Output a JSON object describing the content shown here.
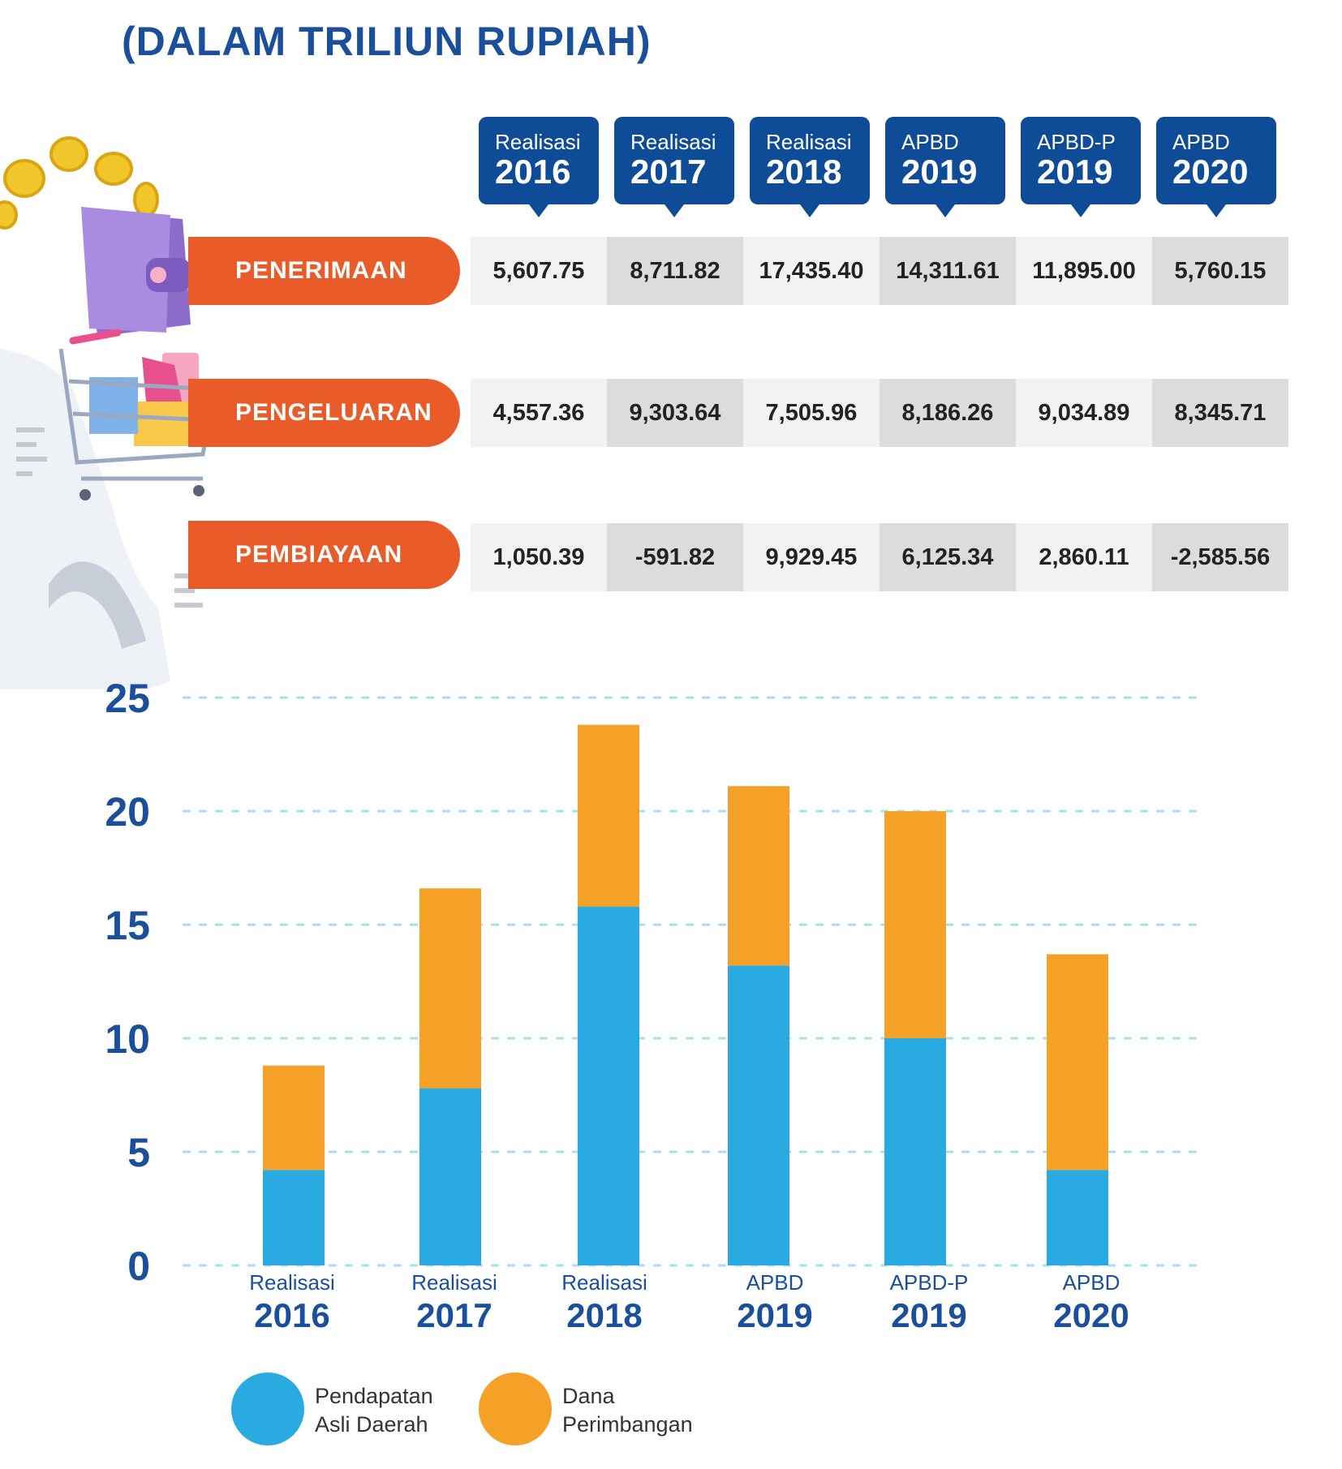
{
  "title": "(DALAM TRILIUN RUPIAH)",
  "colors": {
    "navy": "#0f4c97",
    "orange_pill": "#ea5b2a",
    "pad": "#29abe2",
    "dana": "#f5a026"
  },
  "headers": [
    {
      "label": "Realisasi",
      "year": "2016"
    },
    {
      "label": "Realisasi",
      "year": "2017"
    },
    {
      "label": "Realisasi",
      "year": "2018"
    },
    {
      "label": "APBD",
      "year": "2019"
    },
    {
      "label": "APBD-P",
      "year": "2019"
    },
    {
      "label": "APBD",
      "year": "2020"
    }
  ],
  "rows": [
    {
      "label": "PENERIMAAN",
      "values": [
        "5,607.75",
        "8,711.82",
        "17,435.40",
        "14,311.61",
        "11,895.00",
        "5,760.15"
      ]
    },
    {
      "label": "PENGELUARAN",
      "values": [
        "4,557.36",
        "9,303.64",
        "7,505.96",
        "8,186.26",
        "9,034.89",
        "8,345.71"
      ]
    },
    {
      "label": "PEMBIAYAAN",
      "values": [
        "1,050.39",
        "-591.82",
        "9,929.45",
        "6,125.34",
        "2,860.11",
        "-2,585.56"
      ]
    }
  ],
  "chart_data": {
    "type": "bar",
    "stacked": true,
    "categories": [
      "Realisasi 2016",
      "Realisasi 2017",
      "Realisasi 2018",
      "APBD 2019",
      "APBD-P 2019",
      "APBD 2020"
    ],
    "category_lines": [
      [
        "Realisasi",
        "2016"
      ],
      [
        "Realisasi",
        "2017"
      ],
      [
        "Realisasi",
        "2018"
      ],
      [
        "APBD",
        "2019"
      ],
      [
        "APBD-P",
        "2019"
      ],
      [
        "APBD",
        "2020"
      ]
    ],
    "series": [
      {
        "name": "Pendapatan Asli Daerah",
        "color": "#29abe2",
        "values": [
          4.2,
          7.8,
          15.8,
          13.2,
          10.0,
          4.2
        ]
      },
      {
        "name": "Dana Perimbangan",
        "color": "#f5a026",
        "values": [
          4.6,
          8.8,
          8.0,
          7.9,
          10.0,
          9.5
        ]
      }
    ],
    "yticks": [
      "0",
      "5",
      "10",
      "15",
      "20",
      "25"
    ],
    "ylim": [
      0,
      25
    ],
    "grid": true,
    "legend_position": "bottom-left"
  },
  "legend": [
    {
      "line1": "Pendapatan",
      "line2": "Asli Daerah"
    },
    {
      "line1": "Dana",
      "line2": "Perimbangan"
    }
  ]
}
